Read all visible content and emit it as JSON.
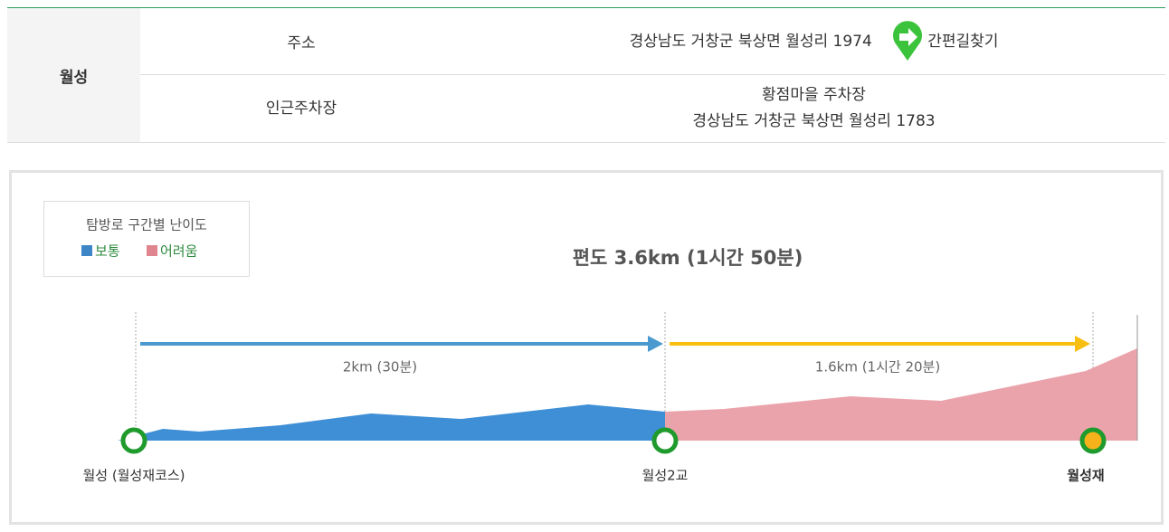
{
  "table": {
    "row_header": "월성",
    "rows": [
      {
        "label": "주소",
        "value": [
          "경상남도 거창군 북상면 월성리 1974"
        ],
        "link": "간편길찾기"
      },
      {
        "label": "인근주차장",
        "value": [
          "황점마을 주차장",
          "경상남도 거창군 북상면 월성리 1783"
        ]
      }
    ]
  },
  "diagram": {
    "legend": {
      "title": "탐방로 구간별 난이도",
      "items": [
        "보통",
        "어려움"
      ]
    },
    "title": "편도 3.6km (1시간 50분)",
    "segments": [
      "2km (30분)",
      "1.6km (1시간 20분)"
    ],
    "points": [
      "월성 (월성재코스)",
      "월성2교",
      "월성재"
    ]
  }
}
